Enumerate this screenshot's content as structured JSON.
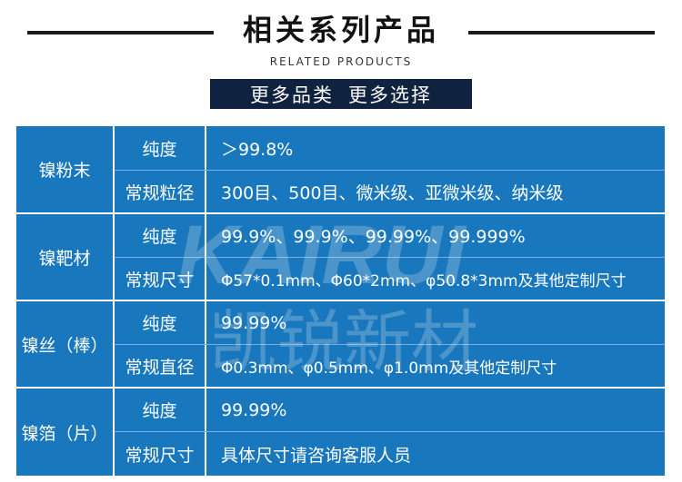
{
  "header": {
    "title": "相关系列产品",
    "subtitle": "RELATED PRODUCTS"
  },
  "more": {
    "label1": "更多品类",
    "label2": "更多选择"
  },
  "watermark": {
    "latin": "KAIRUI",
    "cjk": "凯锐新材"
  },
  "table": {
    "rows": [
      {
        "category": "镍粉末",
        "specs": [
          {
            "label": "纯度",
            "value": "＞99.8%"
          },
          {
            "label": "常规粒径",
            "value": "300目、500目、微米级、亚微米级、纳米级"
          }
        ]
      },
      {
        "category": "镍靶材",
        "specs": [
          {
            "label": "纯度",
            "value": "99.9%、99.9%、99.99%、99.999%"
          },
          {
            "label": "常规尺寸",
            "value": "Φ57*0.1mm、Φ60*2mm、φ50.8*3mm及其他定制尺寸"
          }
        ]
      },
      {
        "category": "镍丝（棒）",
        "specs": [
          {
            "label": "纯度",
            "value": "99.99%"
          },
          {
            "label": "常规直径",
            "value": "Φ0.3mm、φ0.5mm、φ1.0mm及其他定制尺寸"
          }
        ]
      },
      {
        "category": "镍箔（片）",
        "specs": [
          {
            "label": "纯度",
            "value": "99.99%"
          },
          {
            "label": "常规尺寸",
            "value": "具体尺寸请咨询客服人员"
          }
        ]
      }
    ]
  }
}
